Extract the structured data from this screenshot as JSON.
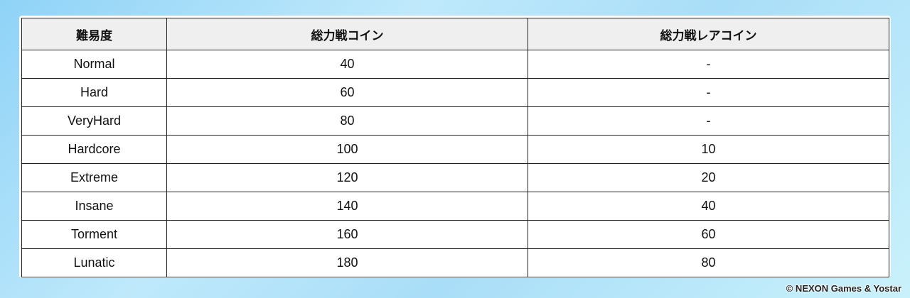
{
  "table": {
    "headers": [
      "難易度",
      "総力戦コイン",
      "総力戦レアコイン"
    ],
    "rows": [
      [
        "Normal",
        "40",
        "-"
      ],
      [
        "Hard",
        "60",
        "-"
      ],
      [
        "VeryHard",
        "80",
        "-"
      ],
      [
        "Hardcore",
        "100",
        "10"
      ],
      [
        "Extreme",
        "120",
        "20"
      ],
      [
        "Insane",
        "140",
        "40"
      ],
      [
        "Torment",
        "160",
        "60"
      ],
      [
        "Lunatic",
        "180",
        "80"
      ]
    ]
  },
  "copyright": "© NEXON Games & Yostar"
}
